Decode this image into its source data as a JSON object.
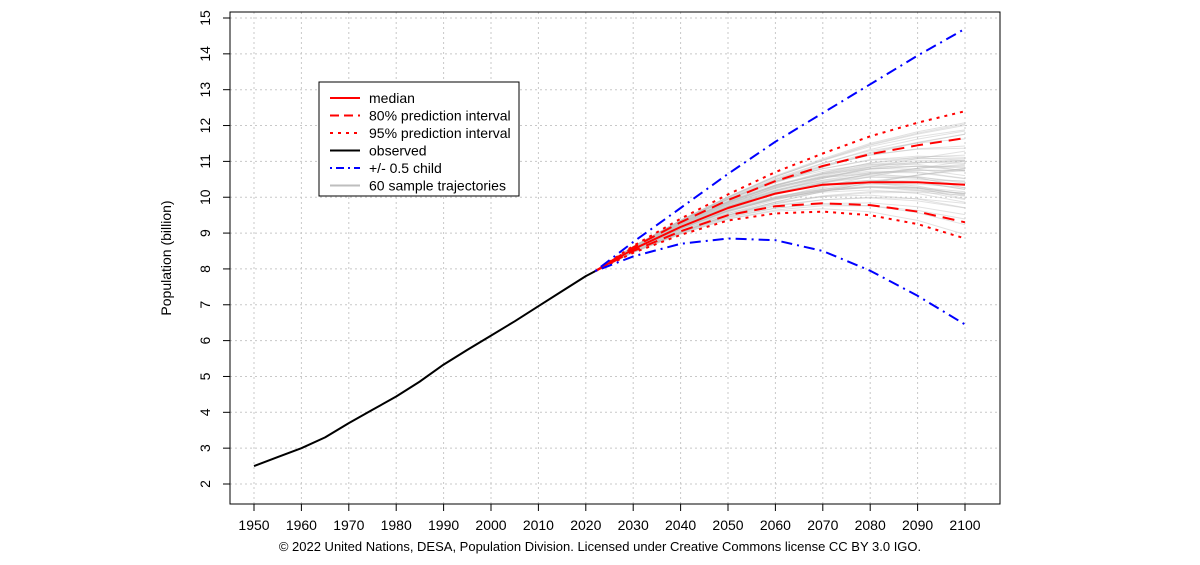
{
  "chart_data": {
    "type": "line",
    "ylabel": "Population (billion)",
    "xlabel": "",
    "xlim": [
      1950,
      2100
    ],
    "ylim": [
      2,
      15
    ],
    "x_ticks": [
      1950,
      1960,
      1970,
      1980,
      1990,
      2000,
      2010,
      2020,
      2030,
      2040,
      2050,
      2060,
      2070,
      2080,
      2090,
      2100
    ],
    "y_ticks": [
      2,
      3,
      4,
      5,
      6,
      7,
      8,
      9,
      10,
      11,
      12,
      13,
      14,
      15
    ],
    "grid": true,
    "legend_position": "top-left",
    "legend": [
      {
        "label": "median",
        "color": "#ff0000",
        "style": "solid"
      },
      {
        "label": "80% prediction interval",
        "color": "#ff0000",
        "style": "dashed"
      },
      {
        "label": "95% prediction interval",
        "color": "#ff0000",
        "style": "dotted"
      },
      {
        "label": "observed",
        "color": "#000000",
        "style": "solid"
      },
      {
        "label": "+/- 0.5 child",
        "color": "#0000ff",
        "style": "dotdash"
      },
      {
        "label": "60 sample trajectories",
        "color": "#bebebe",
        "style": "solid"
      }
    ],
    "series": [
      {
        "name": "observed",
        "color": "#000000",
        "style": "solid",
        "x": [
          1950,
          1955,
          1960,
          1965,
          1970,
          1975,
          1980,
          1985,
          1990,
          1995,
          2000,
          2005,
          2010,
          2015,
          2020,
          2022
        ],
        "values": [
          2.5,
          2.75,
          3.0,
          3.3,
          3.7,
          4.07,
          4.44,
          4.86,
          5.33,
          5.74,
          6.14,
          6.54,
          6.96,
          7.38,
          7.8,
          7.94
        ]
      },
      {
        "name": "median",
        "color": "#ff0000",
        "style": "solid",
        "x": [
          2022,
          2030,
          2040,
          2050,
          2060,
          2070,
          2080,
          2090,
          2100
        ],
        "values": [
          7.94,
          8.55,
          9.17,
          9.7,
          10.1,
          10.35,
          10.42,
          10.42,
          10.35
        ]
      },
      {
        "name": "80% prediction interval (upper)",
        "color": "#ff0000",
        "style": "dashed",
        "x": [
          2022,
          2030,
          2040,
          2050,
          2060,
          2070,
          2080,
          2090,
          2100
        ],
        "values": [
          7.94,
          8.6,
          9.3,
          9.92,
          10.45,
          10.87,
          11.2,
          11.45,
          11.65
        ]
      },
      {
        "name": "80% prediction interval (lower)",
        "color": "#ff0000",
        "style": "dashed",
        "x": [
          2022,
          2030,
          2040,
          2050,
          2060,
          2070,
          2080,
          2090,
          2100
        ],
        "values": [
          7.94,
          8.5,
          9.05,
          9.5,
          9.75,
          9.83,
          9.78,
          9.6,
          9.3
        ]
      },
      {
        "name": "95% prediction interval (upper)",
        "color": "#ff0000",
        "style": "dotted",
        "x": [
          2022,
          2030,
          2040,
          2050,
          2060,
          2070,
          2080,
          2090,
          2100
        ],
        "values": [
          7.94,
          8.64,
          9.4,
          10.08,
          10.7,
          11.22,
          11.7,
          12.08,
          12.4
        ]
      },
      {
        "name": "95% prediction interval (lower)",
        "color": "#ff0000",
        "style": "dotted",
        "x": [
          2022,
          2030,
          2040,
          2050,
          2060,
          2070,
          2080,
          2090,
          2100
        ],
        "values": [
          7.94,
          8.45,
          8.95,
          9.35,
          9.55,
          9.6,
          9.5,
          9.25,
          8.85
        ]
      },
      {
        "name": "+/- 0.5 child (upper)",
        "color": "#0000ff",
        "style": "dotdash",
        "x": [
          2022,
          2030,
          2040,
          2050,
          2060,
          2070,
          2080,
          2090,
          2100
        ],
        "values": [
          7.94,
          8.75,
          9.7,
          10.65,
          11.55,
          12.35,
          13.15,
          13.95,
          14.7
        ]
      },
      {
        "name": "+/- 0.5 child (lower)",
        "color": "#0000ff",
        "style": "dotdash",
        "x": [
          2022,
          2030,
          2040,
          2050,
          2060,
          2070,
          2080,
          2090,
          2100
        ],
        "values": [
          7.94,
          8.35,
          8.7,
          8.85,
          8.8,
          8.5,
          7.95,
          7.25,
          6.45
        ]
      }
    ],
    "sample_trajectories": {
      "count": 60,
      "color": "#bebebe"
    }
  },
  "footer": {
    "copyright": "© 2022 United Nations, DESA, Population Division. Licensed under Creative Commons license CC BY 3.0 IGO."
  }
}
